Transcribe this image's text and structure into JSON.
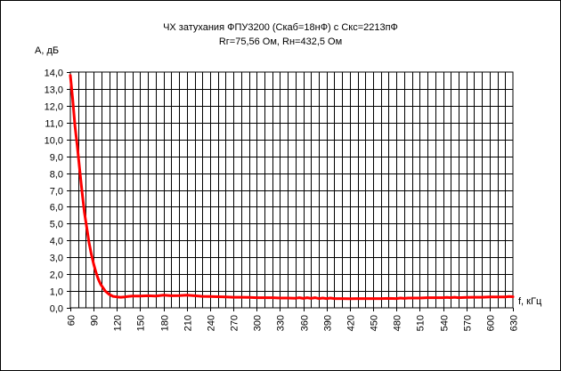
{
  "chart_data": {
    "type": "line",
    "title": "ЧХ затухания ФПУ3200 (Скаб=18нФ) с Скс=2213пФ",
    "subtitle": "Rг=75,56 Ом, Rн=432,5 Ом",
    "ylabel": "A, дБ",
    "xlabel": "f, кГц",
    "xlim": [
      60,
      630
    ],
    "ylim": [
      0,
      14
    ],
    "grid": true,
    "legend": "none",
    "line_color": "#ff0000",
    "x_tick_values": [
      60,
      90,
      120,
      150,
      180,
      210,
      240,
      270,
      300,
      330,
      360,
      390,
      420,
      450,
      480,
      510,
      540,
      570,
      600,
      630
    ],
    "x_tick_labels": [
      "60",
      "90",
      "120",
      "150",
      "180",
      "210",
      "240",
      "270",
      "300",
      "330",
      "360",
      "390",
      "420",
      "450",
      "480",
      "510",
      "540",
      "570",
      "600",
      "630"
    ],
    "y_tick_values": [
      0,
      1,
      2,
      3,
      4,
      5,
      6,
      7,
      8,
      9,
      10,
      11,
      12,
      13,
      14
    ],
    "y_tick_labels": [
      "0,0",
      "1,0",
      "2,0",
      "3,0",
      "4,0",
      "5,0",
      "6,0",
      "7,0",
      "8,0",
      "9,0",
      "10,0",
      "11,0",
      "12,0",
      "13,0",
      "14,0"
    ],
    "series": [
      {
        "x": [
          60,
          63,
          66,
          69,
          72,
          75,
          78,
          81,
          84,
          87,
          90,
          93,
          96,
          99,
          102,
          105,
          110,
          115,
          120,
          125,
          130,
          135,
          140,
          150,
          160,
          170,
          180,
          190,
          200,
          210,
          220,
          230,
          240,
          250,
          260,
          270,
          280,
          290,
          300,
          310,
          320,
          330,
          340,
          350,
          355,
          360,
          365,
          370,
          375,
          380,
          385,
          390,
          395,
          400,
          410,
          420,
          430,
          440,
          450,
          460,
          470,
          480,
          485,
          490,
          495,
          500,
          510,
          520,
          530,
          540,
          545,
          550,
          555,
          560,
          570,
          580,
          590,
          600,
          610,
          620,
          625,
          630
        ],
        "values": [
          13.8,
          12.4,
          10.8,
          9.6,
          8.2,
          6.9,
          5.7,
          4.8,
          3.9,
          3.2,
          2.6,
          2.1,
          1.7,
          1.4,
          1.2,
          1.0,
          0.8,
          0.68,
          0.65,
          0.63,
          0.65,
          0.68,
          0.7,
          0.7,
          0.72,
          0.7,
          0.75,
          0.72,
          0.73,
          0.75,
          0.72,
          0.68,
          0.67,
          0.66,
          0.65,
          0.63,
          0.63,
          0.62,
          0.6,
          0.6,
          0.6,
          0.58,
          0.58,
          0.57,
          0.6,
          0.56,
          0.6,
          0.56,
          0.6,
          0.55,
          0.58,
          0.55,
          0.58,
          0.55,
          0.55,
          0.54,
          0.55,
          0.55,
          0.55,
          0.55,
          0.56,
          0.55,
          0.58,
          0.56,
          0.58,
          0.58,
          0.58,
          0.6,
          0.6,
          0.6,
          0.62,
          0.6,
          0.63,
          0.6,
          0.62,
          0.63,
          0.63,
          0.65,
          0.65,
          0.65,
          0.67,
          0.66
        ]
      }
    ]
  }
}
